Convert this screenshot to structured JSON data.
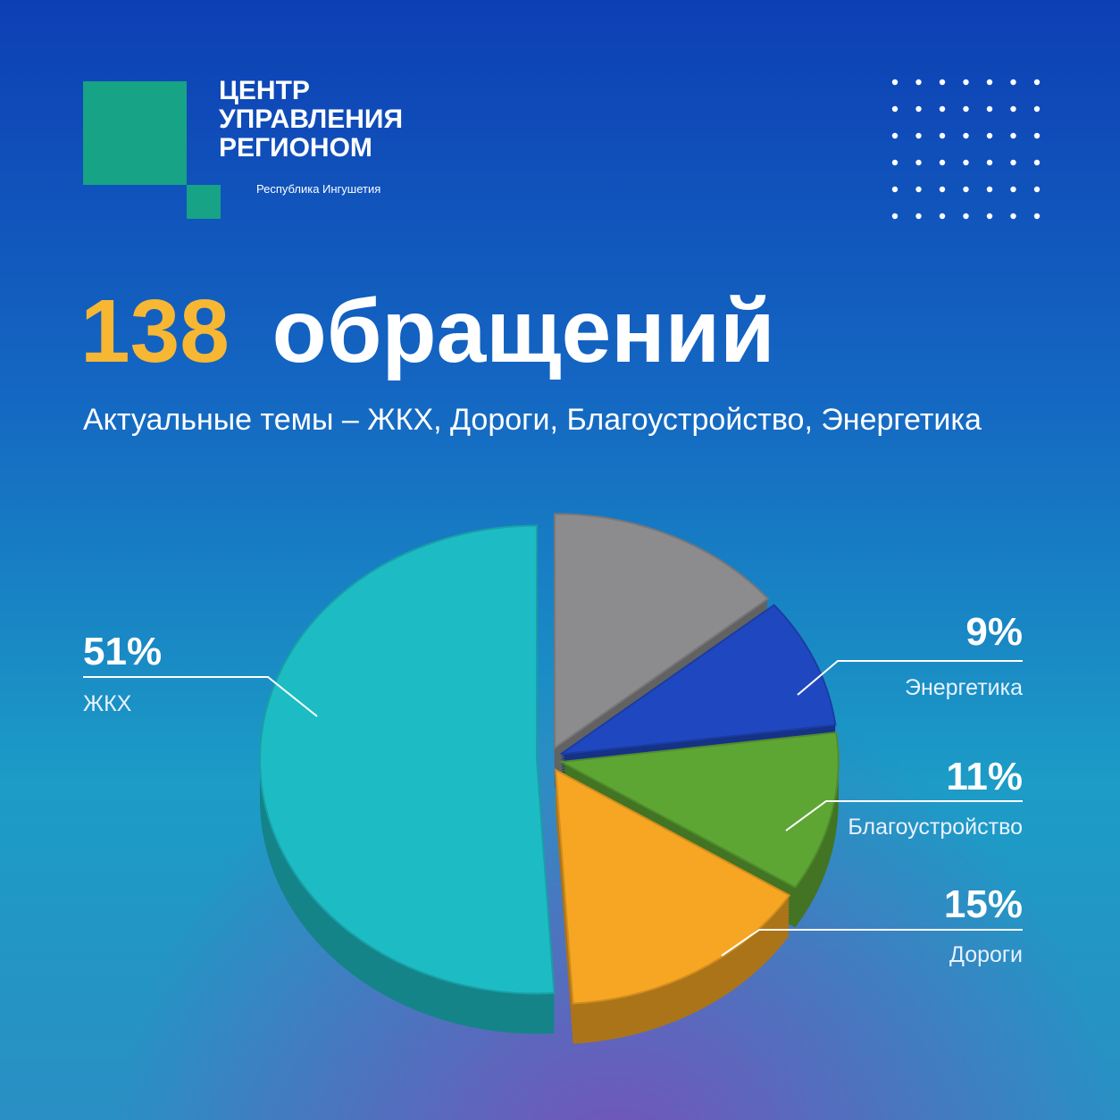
{
  "header": {
    "logo_lines": [
      "ЦЕНТР",
      "УПРАВЛЕНИЯ",
      "РЕГИОНОМ"
    ],
    "region": "Республика Ингушетия"
  },
  "chart_data": {
    "type": "pie",
    "title_count": 138,
    "title_text": "обращений",
    "subtitle": "Актуальные темы – ЖКХ, Дороги, Благоустройство, Энергетика",
    "categories": [
      null,
      "Энергетика",
      "Благоустройство",
      "Дороги",
      "ЖКХ"
    ],
    "values": [
      14,
      9,
      11,
      15,
      51
    ],
    "value_labels": [
      null,
      "9%",
      "11%",
      "15%",
      "51%"
    ],
    "colors": [
      "#8c8c8e",
      "#1f48c0",
      "#5ea634",
      "#f6a623",
      "#1dbcc4"
    ]
  }
}
